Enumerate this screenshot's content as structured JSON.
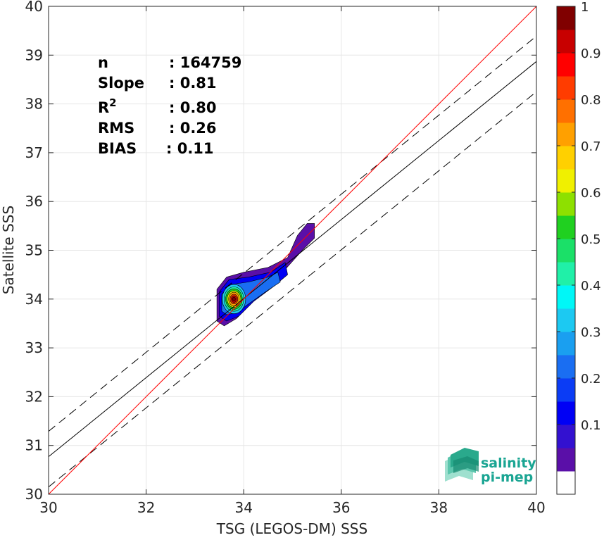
{
  "chart_data": {
    "type": "heatmap",
    "subtype": "density-contour-scatter",
    "xlabel": "TSG (LEGOS-DM) SSS",
    "ylabel": "Satellite SSS",
    "xlim": [
      30,
      40
    ],
    "ylim": [
      30,
      40
    ],
    "xticks": [
      30,
      32,
      34,
      36,
      38,
      40
    ],
    "yticks": [
      30,
      31,
      32,
      33,
      34,
      35,
      36,
      37,
      38,
      39,
      40
    ],
    "grid": true,
    "stats": [
      {
        "label": "n",
        "value": ": 164759"
      },
      {
        "label": "Slope",
        "value": ": 0.81"
      },
      {
        "label": "R",
        "sup": "2",
        "value": ": 0.80"
      },
      {
        "label": "RMS",
        "value": ": 0.26"
      },
      {
        "label": "BIAS",
        "value": ": 0.11"
      }
    ],
    "lines": {
      "identity": {
        "slope": 1.0,
        "intercept": 0.0,
        "color": "#ff0000"
      },
      "regression": {
        "slope": 0.81,
        "intercept": 6.47,
        "color": "#000000"
      },
      "regression_offsets_dashed": [
        0.52,
        -0.62
      ]
    },
    "density_peak": {
      "x": 33.8,
      "y": 34.0
    },
    "colorbar": {
      "min": 0,
      "max": 1,
      "ticks": [
        "0.1",
        "0.2",
        "0.3",
        "0.4",
        "0.5",
        "0.6",
        "0.7",
        "0.8",
        "0.9",
        "1"
      ],
      "levels": 20,
      "colors": [
        "#ffffff",
        "#5a0fa8",
        "#3311d0",
        "#0000f5",
        "#0b3cf5",
        "#1a6ef2",
        "#1a9ff0",
        "#1cc9f2",
        "#00f7f7",
        "#20f0a8",
        "#1be068",
        "#20d020",
        "#8ee000",
        "#f0f000",
        "#ffd000",
        "#ffa000",
        "#ff7000",
        "#ff3c00",
        "#ff0000",
        "#c80000",
        "#800000"
      ]
    }
  },
  "logo": {
    "line1": "salinity",
    "line2": "pi-mep",
    "accent": "#1aa593"
  }
}
